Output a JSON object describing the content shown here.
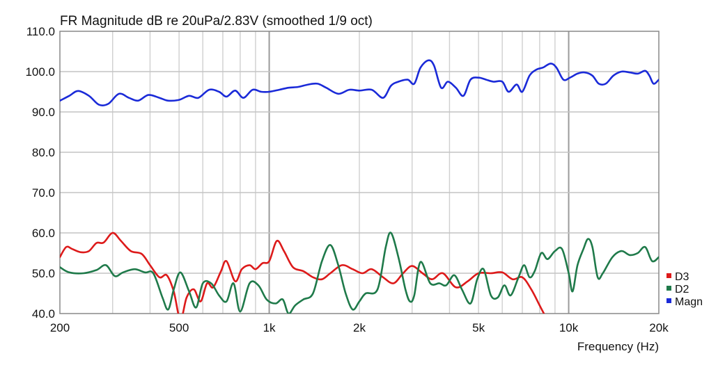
{
  "chart_data": {
    "type": "line",
    "title": "FR Magnitude dB re 20uPa/2.83V (smoothed 1/9 oct)",
    "xlabel": "Frequency (Hz)",
    "ylabel": "",
    "x_scale": "log",
    "xlim": [
      200,
      20000
    ],
    "ylim": [
      40,
      110
    ],
    "x_ticks": [
      {
        "value": 200,
        "label": "200"
      },
      {
        "value": 500,
        "label": "500"
      },
      {
        "value": 1000,
        "label": "1k"
      },
      {
        "value": 2000,
        "label": "2k"
      },
      {
        "value": 5000,
        "label": "5k"
      },
      {
        "value": 10000,
        "label": "10k"
      },
      {
        "value": 20000,
        "label": "20k"
      }
    ],
    "y_ticks": [
      {
        "value": 110,
        "label": "110.0"
      },
      {
        "value": 100,
        "label": "100.0"
      },
      {
        "value": 90,
        "label": "90.0"
      },
      {
        "value": 80,
        "label": "80.0"
      },
      {
        "value": 70,
        "label": "70.0"
      },
      {
        "value": 60,
        "label": "60.0"
      },
      {
        "value": 50,
        "label": "50.0"
      },
      {
        "value": 40,
        "label": "40.0"
      }
    ],
    "grid": true,
    "legend_position": "right-bottom",
    "series": [
      {
        "name": "D3",
        "color": "#dd1a1a",
        "points": [
          [
            200,
            54.0
          ],
          [
            210,
            56.5
          ],
          [
            220,
            56.0
          ],
          [
            235,
            55.2
          ],
          [
            250,
            55.5
          ],
          [
            265,
            57.5
          ],
          [
            280,
            57.6
          ],
          [
            300,
            60.0
          ],
          [
            320,
            58.0
          ],
          [
            345,
            55.5
          ],
          [
            375,
            54.8
          ],
          [
            400,
            52.0
          ],
          [
            430,
            49.0
          ],
          [
            455,
            49.5
          ],
          [
            480,
            45.5
          ],
          [
            505,
            38.5
          ],
          [
            530,
            44.0
          ],
          [
            560,
            46.0
          ],
          [
            590,
            43.0
          ],
          [
            620,
            47.5
          ],
          [
            650,
            46.5
          ],
          [
            690,
            50.5
          ],
          [
            720,
            53.0
          ],
          [
            770,
            48.0
          ],
          [
            810,
            51.0
          ],
          [
            860,
            52.0
          ],
          [
            900,
            51.0
          ],
          [
            950,
            52.5
          ],
          [
            1000,
            53.0
          ],
          [
            1060,
            58.0
          ],
          [
            1120,
            55.5
          ],
          [
            1200,
            51.5
          ],
          [
            1300,
            50.5
          ],
          [
            1400,
            49.0
          ],
          [
            1500,
            48.5
          ],
          [
            1600,
            50.0
          ],
          [
            1750,
            52.0
          ],
          [
            1900,
            51.0
          ],
          [
            2050,
            50.0
          ],
          [
            2200,
            51.0
          ],
          [
            2400,
            49.0
          ],
          [
            2600,
            47.5
          ],
          [
            2800,
            50.0
          ],
          [
            3000,
            51.8
          ],
          [
            3250,
            50.0
          ],
          [
            3500,
            48.5
          ],
          [
            3800,
            50.0
          ],
          [
            4200,
            46.5
          ],
          [
            4600,
            48.0
          ],
          [
            5000,
            50.0
          ],
          [
            5500,
            50.0
          ],
          [
            6000,
            50.2
          ],
          [
            6500,
            48.5
          ],
          [
            7000,
            49.0
          ],
          [
            7500,
            46.0
          ],
          [
            8000,
            42.0
          ],
          [
            8400,
            39.0
          ]
        ]
      },
      {
        "name": "D2",
        "color": "#1f7a4a",
        "points": [
          [
            200,
            51.5
          ],
          [
            215,
            50.2
          ],
          [
            240,
            50.0
          ],
          [
            265,
            50.8
          ],
          [
            285,
            52.0
          ],
          [
            305,
            49.3
          ],
          [
            325,
            50.2
          ],
          [
            355,
            51.0
          ],
          [
            385,
            50.2
          ],
          [
            410,
            50.0
          ],
          [
            440,
            44.0
          ],
          [
            460,
            41.0
          ],
          [
            480,
            46.0
          ],
          [
            505,
            50.2
          ],
          [
            540,
            45.5
          ],
          [
            570,
            41.5
          ],
          [
            600,
            47.5
          ],
          [
            640,
            47.5
          ],
          [
            680,
            44.5
          ],
          [
            720,
            43.0
          ],
          [
            760,
            47.5
          ],
          [
            800,
            40.5
          ],
          [
            860,
            47.5
          ],
          [
            920,
            47.0
          ],
          [
            980,
            43.5
          ],
          [
            1050,
            42.5
          ],
          [
            1110,
            43.5
          ],
          [
            1160,
            40.0
          ],
          [
            1220,
            42.0
          ],
          [
            1300,
            43.5
          ],
          [
            1400,
            45.0
          ],
          [
            1500,
            53.0
          ],
          [
            1600,
            57.0
          ],
          [
            1700,
            52.0
          ],
          [
            1800,
            45.0
          ],
          [
            1900,
            41.0
          ],
          [
            2000,
            43.0
          ],
          [
            2100,
            45.0
          ],
          [
            2300,
            46.0
          ],
          [
            2450,
            56.5
          ],
          [
            2550,
            60.0
          ],
          [
            2700,
            54.0
          ],
          [
            2850,
            46.0
          ],
          [
            2950,
            43.0
          ],
          [
            3050,
            44.5
          ],
          [
            3200,
            52.8
          ],
          [
            3450,
            47.5
          ],
          [
            3700,
            47.5
          ],
          [
            3900,
            47.0
          ],
          [
            4150,
            49.5
          ],
          [
            4400,
            46.0
          ],
          [
            4700,
            42.5
          ],
          [
            4950,
            48.5
          ],
          [
            5200,
            51.0
          ],
          [
            5500,
            44.5
          ],
          [
            5800,
            44.0
          ],
          [
            6100,
            47.0
          ],
          [
            6400,
            44.5
          ],
          [
            6800,
            49.0
          ],
          [
            7100,
            52.0
          ],
          [
            7400,
            49.0
          ],
          [
            7700,
            50.5
          ],
          [
            8100,
            55.0
          ],
          [
            8500,
            53.5
          ],
          [
            9000,
            55.5
          ],
          [
            9500,
            56.0
          ],
          [
            10000,
            50.0
          ],
          [
            10300,
            45.5
          ],
          [
            10700,
            52.0
          ],
          [
            11200,
            56.0
          ],
          [
            11600,
            58.5
          ],
          [
            12000,
            56.5
          ],
          [
            12500,
            49.0
          ],
          [
            13000,
            50.0
          ],
          [
            14000,
            54.0
          ],
          [
            15000,
            55.5
          ],
          [
            16000,
            54.5
          ],
          [
            17000,
            55.0
          ],
          [
            18000,
            56.5
          ],
          [
            19000,
            53.0
          ],
          [
            20000,
            54.0
          ]
        ]
      },
      {
        "name": "Magn",
        "color": "#1a2ad8",
        "points": [
          [
            200,
            92.8
          ],
          [
            215,
            94.0
          ],
          [
            230,
            95.2
          ],
          [
            250,
            94.0
          ],
          [
            270,
            91.8
          ],
          [
            290,
            92.0
          ],
          [
            315,
            94.5
          ],
          [
            340,
            93.5
          ],
          [
            365,
            92.8
          ],
          [
            395,
            94.2
          ],
          [
            430,
            93.5
          ],
          [
            460,
            92.8
          ],
          [
            500,
            93.0
          ],
          [
            540,
            94.0
          ],
          [
            580,
            93.5
          ],
          [
            630,
            95.5
          ],
          [
            680,
            95.0
          ],
          [
            720,
            93.8
          ],
          [
            770,
            95.3
          ],
          [
            820,
            93.5
          ],
          [
            880,
            95.5
          ],
          [
            940,
            95.0
          ],
          [
            1000,
            95.0
          ],
          [
            1080,
            95.5
          ],
          [
            1160,
            96.0
          ],
          [
            1250,
            96.2
          ],
          [
            1350,
            96.8
          ],
          [
            1450,
            97.0
          ],
          [
            1550,
            96.0
          ],
          [
            1700,
            94.5
          ],
          [
            1850,
            95.5
          ],
          [
            2000,
            95.3
          ],
          [
            2200,
            95.5
          ],
          [
            2400,
            93.5
          ],
          [
            2550,
            96.5
          ],
          [
            2700,
            97.5
          ],
          [
            2900,
            98.0
          ],
          [
            3050,
            97.0
          ],
          [
            3200,
            101.0
          ],
          [
            3400,
            102.8
          ],
          [
            3550,
            101.5
          ],
          [
            3750,
            96.0
          ],
          [
            3950,
            97.5
          ],
          [
            4200,
            96.0
          ],
          [
            4450,
            94.0
          ],
          [
            4700,
            98.0
          ],
          [
            5000,
            98.5
          ],
          [
            5300,
            98.0
          ],
          [
            5600,
            97.5
          ],
          [
            6000,
            97.5
          ],
          [
            6300,
            95.0
          ],
          [
            6700,
            96.8
          ],
          [
            7000,
            95.0
          ],
          [
            7400,
            99.0
          ],
          [
            7800,
            100.5
          ],
          [
            8200,
            101.0
          ],
          [
            8700,
            102.0
          ],
          [
            9100,
            101.0
          ],
          [
            9600,
            98.0
          ],
          [
            10100,
            98.5
          ],
          [
            10700,
            99.5
          ],
          [
            11300,
            99.8
          ],
          [
            12000,
            99.0
          ],
          [
            12600,
            97.0
          ],
          [
            13300,
            97.0
          ],
          [
            14100,
            99.0
          ],
          [
            15000,
            100.0
          ],
          [
            16000,
            99.8
          ],
          [
            17000,
            99.5
          ],
          [
            18000,
            100.2
          ],
          [
            18600,
            99.0
          ],
          [
            19200,
            97.0
          ],
          [
            20000,
            98.0
          ]
        ]
      }
    ]
  }
}
